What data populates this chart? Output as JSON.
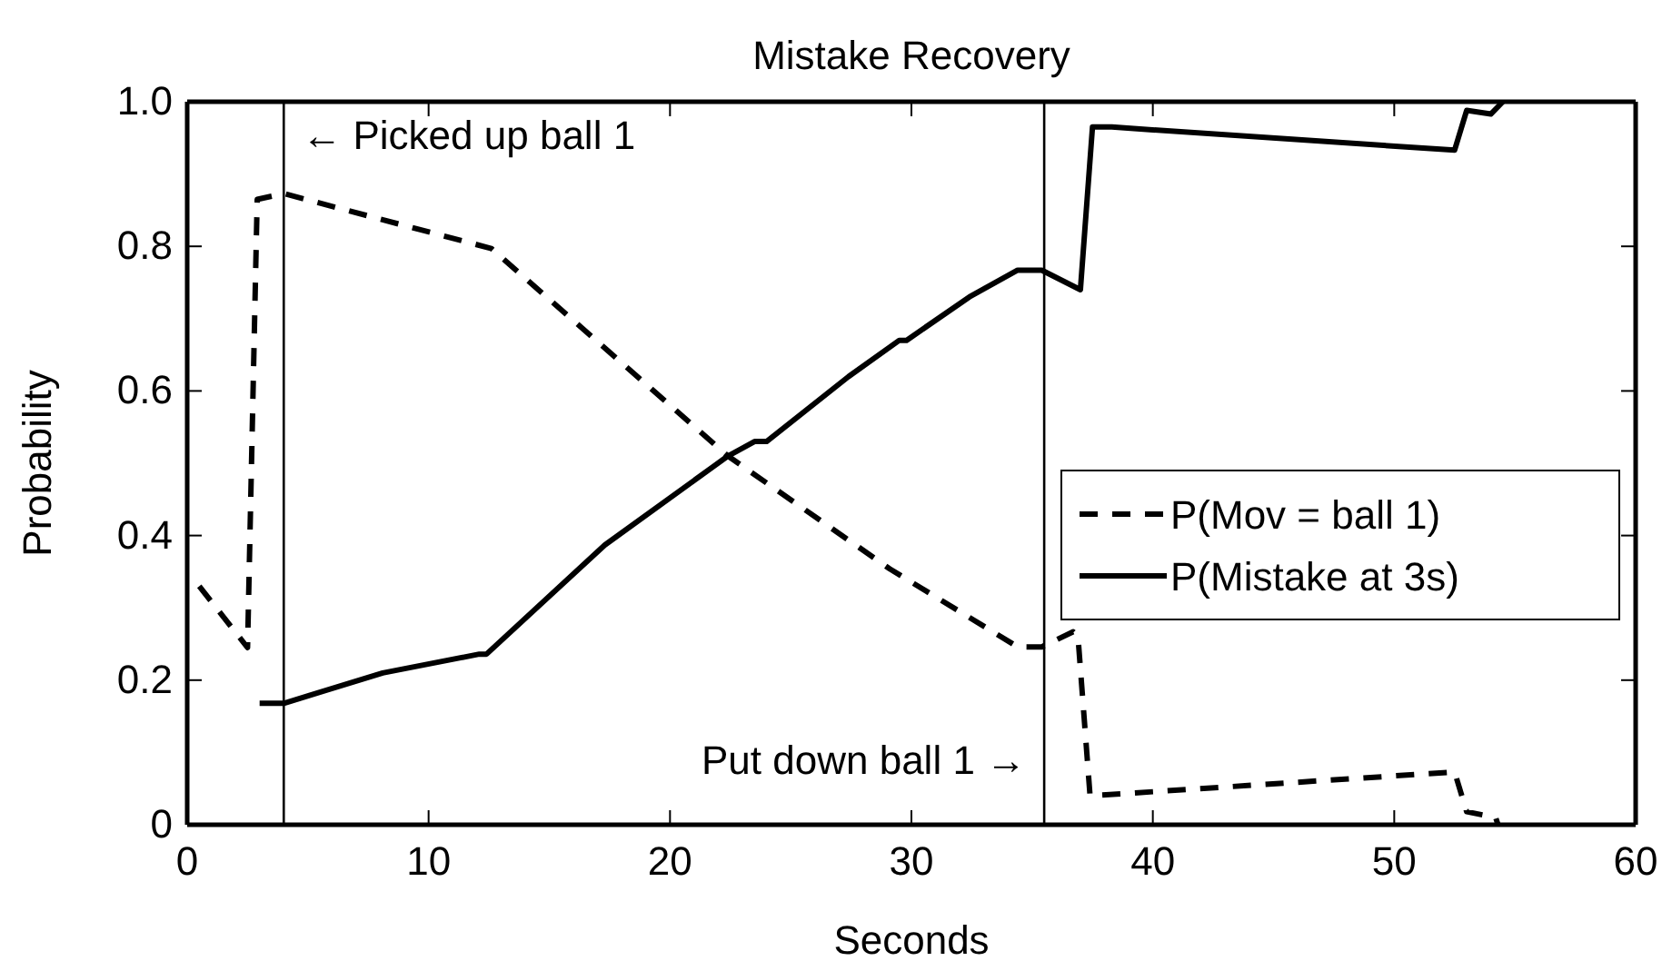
{
  "chart_data": {
    "type": "line",
    "title": "Mistake Recovery",
    "xlabel": "Seconds",
    "ylabel": "Probability",
    "xlim": [
      0,
      60
    ],
    "xticks": [
      0,
      10,
      20,
      30,
      40,
      50,
      60
    ],
    "ylim": [
      0,
      1
    ],
    "yticks": [
      0,
      {
        "value": 0.2,
        "label": "0.2"
      },
      {
        "value": 0.4,
        "label": "0.4"
      },
      {
        "value": 0.6,
        "label": "0.6"
      },
      {
        "value": 0.8,
        "label": "0.8"
      },
      {
        "value": 1,
        "label": "1.0"
      }
    ],
    "grid": false,
    "legend": "right",
    "series": [
      {
        "name": "P(Mov = ball 1)",
        "color": "#000000",
        "line_style": "dashed",
        "x": [
          0.5,
          2.5,
          2.9,
          4.0,
          12.6,
          22.4,
          29.1,
          34.4,
          35.4,
          36.7,
          36.9,
          37.4,
          52.5,
          53.0,
          54.2,
          54.3
        ],
        "values": [
          0.33,
          0.245,
          0.865,
          0.873,
          0.797,
          0.51,
          0.354,
          0.246,
          0.246,
          0.267,
          0.26,
          0.04,
          0.073,
          0.018,
          0.01,
          0
        ]
      },
      {
        "name": "P(Mistake at 3s)",
        "color": "#000000",
        "line_style": "solid",
        "x": [
          3.0,
          4.0,
          8.1,
          12.1,
          12.4,
          17.3,
          22.4,
          23.5,
          24.0,
          27.4,
          29.5,
          29.8,
          32.4,
          34.4,
          35.4,
          37.0,
          37.5,
          38.3,
          52.5,
          53.0,
          54.0,
          54.5
        ],
        "values": [
          0.168,
          0.168,
          0.21,
          0.236,
          0.236,
          0.387,
          0.51,
          0.53,
          0.53,
          0.62,
          0.67,
          0.67,
          0.73,
          0.767,
          0.767,
          0.74,
          0.965,
          0.965,
          0.933,
          0.988,
          0.983,
          1.0
        ]
      }
    ],
    "ref_lines": [
      {
        "axis": "x",
        "value": 4.0,
        "label": "← Picked up ball 1",
        "color": "#000000"
      },
      {
        "axis": "x",
        "value": 35.5,
        "label": "Put down ball 1 →",
        "color": "#000000"
      }
    ]
  }
}
